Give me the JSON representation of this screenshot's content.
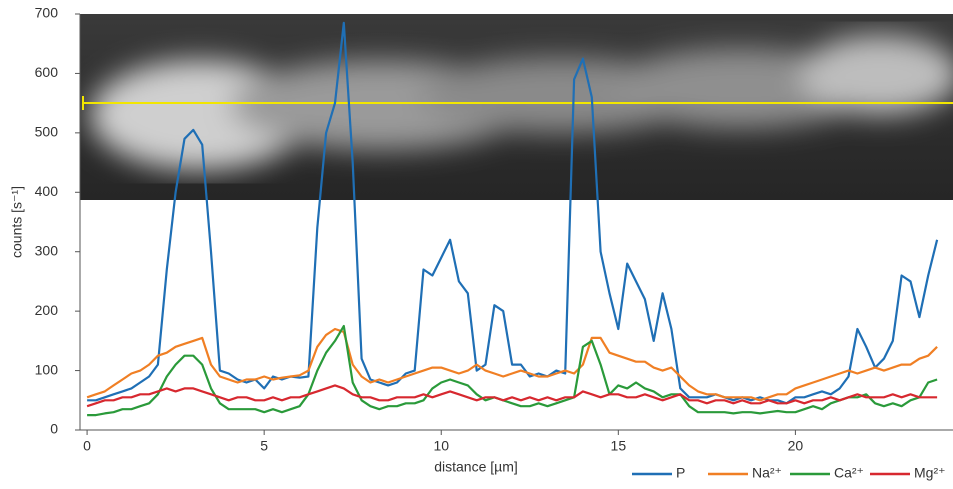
{
  "chart_data": {
    "type": "line",
    "x_label": "distance [µm]",
    "y_label": "counts [s⁻¹]",
    "xlim": [
      -0.2,
      24.45
    ],
    "ylim": [
      0,
      700
    ],
    "xticks": [
      0,
      5,
      10,
      15,
      20
    ],
    "yticks": [
      0,
      100,
      200,
      300,
      400,
      500,
      600,
      700
    ],
    "x": [
      0,
      0.25,
      0.5,
      0.75,
      1,
      1.25,
      1.5,
      1.75,
      2,
      2.25,
      2.5,
      2.75,
      3,
      3.25,
      3.5,
      3.75,
      4,
      4.25,
      4.5,
      4.75,
      5,
      5.25,
      5.5,
      5.75,
      6,
      6.25,
      6.5,
      6.75,
      7,
      7.25,
      7.5,
      7.75,
      8,
      8.25,
      8.5,
      8.75,
      9,
      9.25,
      9.5,
      9.75,
      10,
      10.25,
      10.5,
      10.75,
      11,
      11.25,
      11.5,
      11.75,
      12,
      12.25,
      12.5,
      12.75,
      13,
      13.25,
      13.5,
      13.75,
      14,
      14.25,
      14.5,
      14.75,
      15,
      15.25,
      15.5,
      15.75,
      16,
      16.25,
      16.5,
      16.75,
      17,
      17.25,
      17.5,
      17.75,
      18,
      18.25,
      18.5,
      18.75,
      19,
      19.25,
      19.5,
      19.75,
      20,
      20.25,
      20.5,
      20.75,
      21,
      21.25,
      21.5,
      21.75,
      22,
      22.25,
      22.5,
      22.75,
      23,
      23.25,
      23.5,
      23.75,
      24
    ],
    "series": [
      {
        "name": "P",
        "color": "#1f6fb5",
        "values": [
          50,
          50,
          55,
          60,
          65,
          70,
          80,
          90,
          110,
          270,
          400,
          490,
          505,
          480,
          300,
          100,
          95,
          85,
          80,
          85,
          70,
          90,
          85,
          90,
          88,
          90,
          340,
          500,
          550,
          685,
          450,
          120,
          85,
          80,
          75,
          80,
          95,
          100,
          270,
          260,
          290,
          320,
          250,
          230,
          100,
          110,
          210,
          200,
          110,
          110,
          90,
          95,
          90,
          100,
          95,
          590,
          625,
          560,
          300,
          230,
          170,
          280,
          250,
          220,
          150,
          230,
          170,
          70,
          55,
          55,
          55,
          60,
          55,
          50,
          55,
          50,
          55,
          50,
          50,
          45,
          55,
          55,
          60,
          65,
          60,
          70,
          90,
          170,
          140,
          105,
          120,
          150,
          260,
          250,
          190,
          260,
          320
        ]
      },
      {
        "name": "Na²⁺",
        "color": "#f07f24",
        "values": [
          55,
          60,
          65,
          75,
          85,
          95,
          100,
          110,
          125,
          130,
          140,
          145,
          150,
          155,
          110,
          90,
          85,
          80,
          85,
          85,
          90,
          85,
          88,
          90,
          92,
          100,
          140,
          160,
          170,
          165,
          110,
          90,
          80,
          85,
          80,
          85,
          90,
          95,
          100,
          105,
          105,
          100,
          95,
          100,
          110,
          100,
          95,
          90,
          95,
          100,
          95,
          90,
          90,
          95,
          100,
          95,
          110,
          155,
          155,
          130,
          125,
          120,
          115,
          115,
          105,
          100,
          105,
          90,
          75,
          65,
          60,
          60,
          55,
          55,
          55,
          55,
          50,
          55,
          60,
          60,
          70,
          75,
          80,
          85,
          90,
          95,
          100,
          95,
          100,
          105,
          100,
          105,
          110,
          110,
          120,
          125,
          140
        ]
      },
      {
        "name": "Ca²⁺",
        "color": "#2a9a3a",
        "values": [
          25,
          25,
          28,
          30,
          35,
          35,
          40,
          45,
          60,
          90,
          110,
          125,
          125,
          110,
          70,
          45,
          35,
          35,
          35,
          35,
          30,
          35,
          30,
          35,
          40,
          60,
          100,
          130,
          150,
          175,
          80,
          50,
          40,
          35,
          40,
          40,
          45,
          45,
          50,
          70,
          80,
          85,
          80,
          75,
          60,
          50,
          55,
          50,
          45,
          40,
          40,
          45,
          40,
          45,
          50,
          55,
          140,
          150,
          110,
          60,
          75,
          70,
          80,
          70,
          65,
          55,
          60,
          60,
          40,
          30,
          30,
          30,
          30,
          28,
          30,
          30,
          28,
          30,
          32,
          30,
          30,
          35,
          40,
          35,
          45,
          50,
          55,
          55,
          60,
          45,
          40,
          45,
          40,
          50,
          55,
          80,
          85
        ]
      },
      {
        "name": "Mg²⁺",
        "color": "#d7282f",
        "values": [
          40,
          45,
          50,
          50,
          55,
          55,
          60,
          60,
          65,
          70,
          65,
          70,
          70,
          65,
          60,
          55,
          50,
          55,
          55,
          50,
          50,
          55,
          50,
          55,
          55,
          60,
          65,
          70,
          75,
          70,
          60,
          55,
          55,
          50,
          50,
          55,
          55,
          55,
          60,
          55,
          60,
          65,
          60,
          55,
          50,
          55,
          55,
          50,
          55,
          50,
          55,
          50,
          55,
          50,
          55,
          55,
          65,
          60,
          55,
          60,
          60,
          55,
          55,
          60,
          55,
          50,
          55,
          60,
          50,
          50,
          45,
          50,
          50,
          45,
          50,
          45,
          45,
          50,
          45,
          45,
          50,
          45,
          50,
          50,
          55,
          50,
          55,
          60,
          55,
          55,
          55,
          60,
          55,
          60,
          55,
          55,
          55
        ]
      }
    ]
  }
}
